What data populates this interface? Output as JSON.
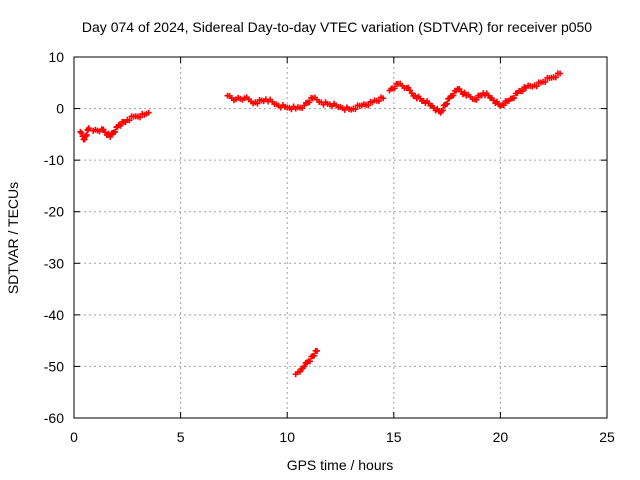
{
  "chart_data": {
    "type": "scatter",
    "title": "Day 074 of 2024, Sidereal Day-to-day VTEC variation (SDTVAR) for receiver p050",
    "xlabel": "GPS time / hours",
    "ylabel": "SDTVAR / TECUs",
    "xlim": [
      0,
      25
    ],
    "ylim": [
      -60,
      10
    ],
    "xticks": [
      0,
      5,
      10,
      15,
      20,
      25
    ],
    "yticks": [
      -60,
      -50,
      -40,
      -30,
      -20,
      -10,
      0,
      10
    ],
    "grid": true,
    "marker": "plus",
    "color": "#ff0000",
    "series": [
      {
        "name": "SDTVAR",
        "segments": [
          {
            "x": [
              0.3,
              0.5,
              0.7
            ],
            "y": [
              -4.5,
              -6.0,
              -3.8
            ]
          },
          {
            "x": [
              0.9,
              1.3,
              1.7,
              2.1,
              2.5,
              2.9,
              3.3,
              3.5
            ],
            "y": [
              -4.3,
              -4.0,
              -5.5,
              -3.2,
              -2.2,
              -1.5,
              -1.2,
              -0.8
            ]
          },
          {
            "x": [
              7.2,
              7.6,
              8.0,
              8.5,
              9.0,
              9.5,
              10.0,
              10.4,
              10.8,
              11.2,
              11.6,
              12.0,
              12.5,
              13.0,
              13.5,
              14.0,
              14.5
            ],
            "y": [
              2.5,
              1.8,
              2.0,
              1.2,
              1.8,
              0.8,
              0.2,
              0.0,
              0.6,
              2.0,
              1.2,
              0.8,
              0.3,
              -0.2,
              0.6,
              1.2,
              2.0
            ]
          },
          {
            "x": [
              14.8,
              15.2,
              15.6,
              16.0,
              16.4,
              16.8,
              17.2,
              17.6,
              18.0,
              18.4,
              18.8,
              19.2,
              19.6,
              20.0,
              20.4,
              20.8,
              21.2,
              21.6,
              22.0,
              22.4,
              22.8
            ],
            "y": [
              3.5,
              4.8,
              4.0,
              2.5,
              1.5,
              0.5,
              -0.8,
              2.0,
              3.8,
              2.5,
              1.8,
              3.0,
              2.0,
              0.5,
              1.5,
              3.0,
              4.0,
              4.5,
              5.2,
              6.0,
              6.8
            ]
          },
          {
            "x": [
              10.4,
              10.6,
              10.8,
              11.0,
              11.2,
              11.4
            ],
            "y": [
              -51.5,
              -51.0,
              -50.0,
              -49.0,
              -48.0,
              -47.0
            ]
          }
        ]
      }
    ]
  }
}
